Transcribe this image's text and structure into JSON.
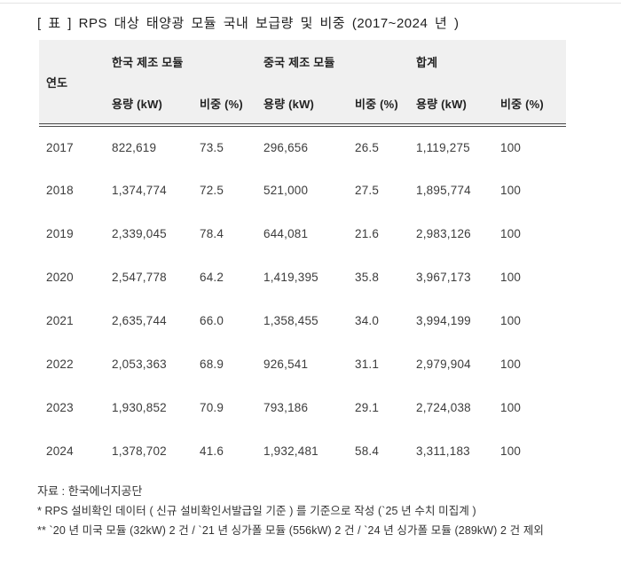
{
  "title": "[ 표 ] RPS 대상 태양광 모듈 국내 보급량 및 비중 (2017~2024 년 )",
  "table": {
    "year_header": "연도",
    "groups": [
      {
        "label": "한국 제조 모듈"
      },
      {
        "label": "중국 제조 모듈"
      },
      {
        "label": "합계"
      }
    ],
    "sub_headers": {
      "capacity": "용량 (kW)",
      "share": "비중 (%)"
    },
    "rows": [
      {
        "year": "2017",
        "kr_capacity": "822,619",
        "kr_share": "73.5",
        "cn_capacity": "296,656",
        "cn_share": "26.5",
        "total_capacity": "1,119,275",
        "total_share": "100"
      },
      {
        "year": "2018",
        "kr_capacity": "1,374,774",
        "kr_share": "72.5",
        "cn_capacity": "521,000",
        "cn_share": "27.5",
        "total_capacity": "1,895,774",
        "total_share": "100"
      },
      {
        "year": "2019",
        "kr_capacity": "2,339,045",
        "kr_share": "78.4",
        "cn_capacity": "644,081",
        "cn_share": "21.6",
        "total_capacity": "2,983,126",
        "total_share": "100"
      },
      {
        "year": "2020",
        "kr_capacity": "2,547,778",
        "kr_share": "64.2",
        "cn_capacity": "1,419,395",
        "cn_share": "35.8",
        "total_capacity": "3,967,173",
        "total_share": "100"
      },
      {
        "year": "2021",
        "kr_capacity": "2,635,744",
        "kr_share": "66.0",
        "cn_capacity": "1,358,455",
        "cn_share": "34.0",
        "total_capacity": "3,994,199",
        "total_share": "100"
      },
      {
        "year": "2022",
        "kr_capacity": "2,053,363",
        "kr_share": "68.9",
        "cn_capacity": "926,541",
        "cn_share": "31.1",
        "total_capacity": "2,979,904",
        "total_share": "100"
      },
      {
        "year": "2023",
        "kr_capacity": "1,930,852",
        "kr_share": "70.9",
        "cn_capacity": "793,186",
        "cn_share": "29.1",
        "total_capacity": "2,724,038",
        "total_share": "100"
      },
      {
        "year": "2024",
        "kr_capacity": "1,378,702",
        "kr_share": "41.6",
        "cn_capacity": "1,932,481",
        "cn_share": "58.4",
        "total_capacity": "3,311,183",
        "total_share": "100"
      }
    ]
  },
  "footer": {
    "source": "자료 : 한국에너지공단",
    "note1": "* RPS 설비확인 데이터 ( 신규 설비확인서발급일 기준 ) 를 기준으로 작성 (`25 년 수치 미집계 )",
    "note2": "** `20 년 미국 모듈 (32kW) 2 건 / `21 년 싱가폴 모듈 (556kW) 2 건 / `24 년 싱가폴 모듈 (289kW) 2 건 제외"
  },
  "colors": {
    "header_bg": "#f0f0f0",
    "divider": "#4d4d4d",
    "top_rule": "#e4e4e4",
    "text": "#3c3c3c"
  }
}
